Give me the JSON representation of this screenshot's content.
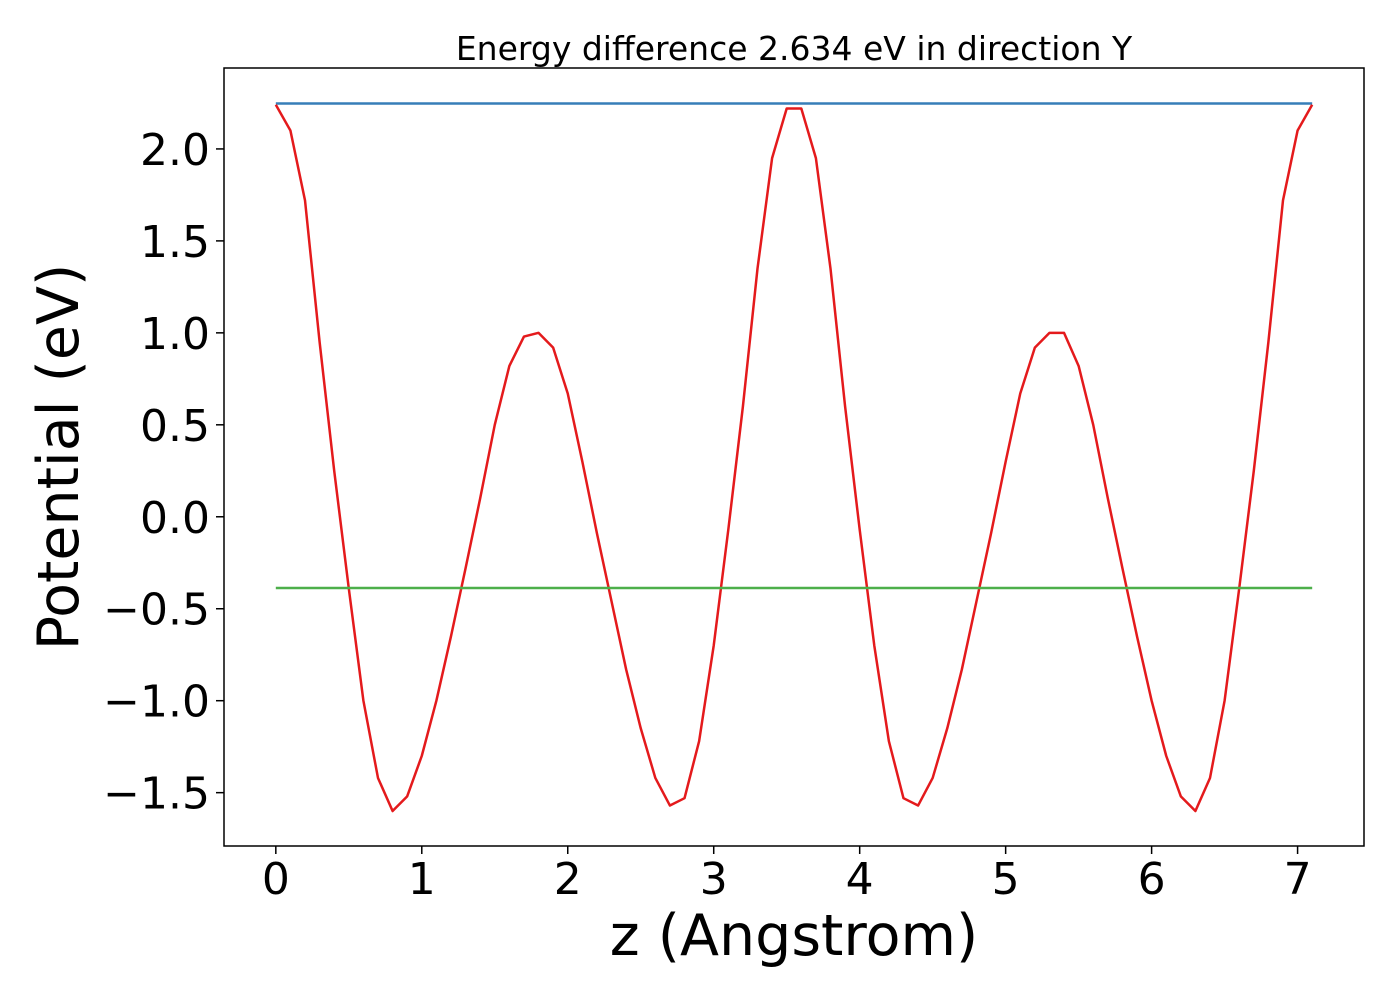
{
  "chart_data": {
    "type": "line",
    "title": "Energy difference 2.634 eV in direction Y",
    "xlabel": "z (Angstrom)",
    "ylabel": "Potential (eV)",
    "xlim": [
      -0.355,
      7.455
    ],
    "ylim": [
      -1.79,
      2.44
    ],
    "xticks": [
      0,
      1,
      2,
      3,
      4,
      5,
      6,
      7
    ],
    "yticks": [
      {
        "value": -1.5,
        "label": "−1.5"
      },
      {
        "value": -1.0,
        "label": "−1.0"
      },
      {
        "value": -0.5,
        "label": "−0.5"
      },
      {
        "value": 0,
        "label": "0.0"
      },
      0.5,
      {
        "value": 1.0,
        "label": "1.0"
      },
      1.5,
      {
        "value": 2.0,
        "label": "2.0"
      }
    ],
    "grid": false,
    "series": [
      {
        "color": "#377eb8",
        "x": [
          0,
          7.1
        ],
        "values": [
          2.247,
          2.247
        ]
      },
      {
        "color": "#e41a1c",
        "x": [
          0,
          0.1,
          0.2,
          0.3,
          0.4,
          0.5,
          0.6,
          0.7,
          0.8,
          0.9,
          1.0,
          1.1,
          1.2,
          1.3,
          1.4,
          1.5,
          1.6,
          1.7,
          1.8,
          1.9,
          2.0,
          2.1,
          2.2,
          2.3,
          2.4,
          2.5,
          2.6,
          2.7,
          2.8,
          2.9,
          3.0,
          3.1,
          3.2,
          3.3,
          3.4,
          3.5,
          3.6,
          3.7,
          3.8,
          3.9,
          4.0,
          4.1,
          4.2,
          4.3,
          4.4,
          4.5,
          4.6,
          4.7,
          4.8,
          4.9,
          5.0,
          5.1,
          5.2,
          5.3,
          5.4,
          5.5,
          5.6,
          5.7,
          5.8,
          5.9,
          6.0,
          6.1,
          6.2,
          6.3,
          6.4,
          6.5,
          6.6,
          6.7,
          6.8,
          6.9,
          7.0,
          7.1
        ],
        "values": [
          2.24,
          2.1,
          1.72,
          0.95,
          0.25,
          -0.39,
          -1.0,
          -1.42,
          -1.6,
          -1.52,
          -1.3,
          -1.0,
          -0.65,
          -0.28,
          0.1,
          0.5,
          0.82,
          0.98,
          1.0,
          0.92,
          0.67,
          0.3,
          -0.09,
          -0.46,
          -0.83,
          -1.15,
          -1.42,
          -1.57,
          -1.53,
          -1.22,
          -0.7,
          -0.07,
          0.6,
          1.35,
          1.95,
          2.22,
          2.22,
          1.95,
          1.35,
          0.6,
          -0.07,
          -0.7,
          -1.22,
          -1.53,
          -1.57,
          -1.42,
          -1.15,
          -0.83,
          -0.46,
          -0.09,
          0.3,
          0.67,
          0.92,
          1.0,
          1.0,
          0.82,
          0.5,
          0.1,
          -0.28,
          -0.65,
          -1.0,
          -1.3,
          -1.52,
          -1.6,
          -1.42,
          -1.0,
          -0.39,
          0.25,
          0.95,
          1.72,
          2.1,
          2.24
        ]
      },
      {
        "color": "#4daf4a",
        "x": [
          0,
          7.1
        ],
        "values": [
          -0.387,
          -0.387
        ]
      }
    ]
  }
}
